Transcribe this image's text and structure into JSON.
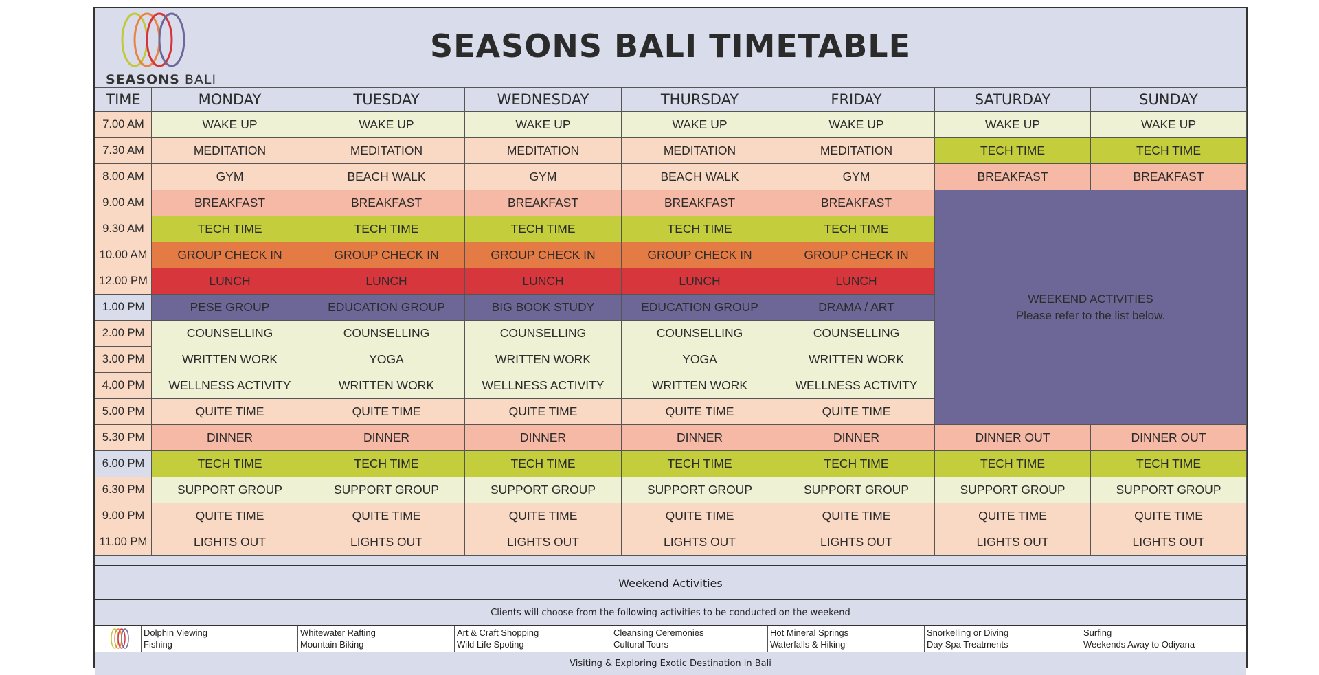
{
  "header": {
    "title": "SEASONS BALI TIMETABLE",
    "logo_text_bold": "SEASONS",
    "logo_text_light": "BALI",
    "logo_colors": [
      "#c3c83a",
      "#e9843f",
      "#d6343b",
      "#6e679a"
    ]
  },
  "table": {
    "time_header": "TIME",
    "days": [
      "MONDAY",
      "TUESDAY",
      "WEDNESDAY",
      "THURSDAY",
      "FRIDAY",
      "SATURDAY",
      "SUNDAY"
    ],
    "times": [
      "7.00 AM",
      "7.30 AM",
      "8.00 AM",
      "9.00 AM",
      "9.30 AM",
      "10.00 AM",
      "12.00 PM",
      "1.00 PM",
      "2.00 PM",
      "3.00 PM",
      "4.00 PM",
      "5.00 PM",
      "5.30 PM",
      "6.00 PM",
      "6.30 PM",
      "9.00 PM",
      "11.00 PM"
    ],
    "rows": [
      [
        "WAKE UP",
        "WAKE UP",
        "WAKE UP",
        "WAKE UP",
        "WAKE UP",
        "WAKE UP",
        "WAKE UP"
      ],
      [
        "MEDITATION",
        "MEDITATION",
        "MEDITATION",
        "MEDITATION",
        "MEDITATION",
        "TECH TIME",
        "TECH TIME"
      ],
      [
        "GYM",
        "BEACH WALK",
        "GYM",
        "BEACH WALK",
        "GYM",
        "BREAKFAST",
        "BREAKFAST"
      ],
      [
        "BREAKFAST",
        "BREAKFAST",
        "BREAKFAST",
        "BREAKFAST",
        "BREAKFAST"
      ],
      [
        "TECH TIME",
        "TECH TIME",
        "TECH TIME",
        "TECH TIME",
        "TECH TIME"
      ],
      [
        "GROUP CHECK IN",
        "GROUP CHECK IN",
        "GROUP CHECK IN",
        "GROUP CHECK IN",
        "GROUP CHECK IN"
      ],
      [
        "LUNCH",
        "LUNCH",
        "LUNCH",
        "LUNCH",
        "LUNCH"
      ],
      [
        "PESE GROUP",
        "EDUCATION GROUP",
        "BIG BOOK STUDY",
        "EDUCATION GROUP",
        "DRAMA / ART"
      ],
      [
        "COUNSELLING",
        "COUNSELLING",
        "COUNSELLING",
        "COUNSELLING",
        "COUNSELLING"
      ],
      [
        "WRITTEN WORK",
        "YOGA",
        "WRITTEN WORK",
        "YOGA",
        "WRITTEN WORK"
      ],
      [
        "WELLNESS ACTIVITY",
        "WRITTEN WORK",
        "WELLNESS ACTIVITY",
        "WRITTEN WORK",
        "WELLNESS ACTIVITY"
      ],
      [
        "QUITE TIME",
        "QUITE TIME",
        "QUITE TIME",
        "QUITE TIME",
        "QUITE TIME"
      ],
      [
        "DINNER",
        "DINNER",
        "DINNER",
        "DINNER",
        "DINNER",
        "DINNER OUT",
        "DINNER OUT"
      ],
      [
        "TECH TIME",
        "TECH TIME",
        "TECH TIME",
        "TECH TIME",
        "TECH TIME",
        "TECH TIME",
        "TECH TIME"
      ],
      [
        "SUPPORT GROUP",
        "SUPPORT GROUP",
        "SUPPORT GROUP",
        "SUPPORT GROUP",
        "SUPPORT GROUP",
        "SUPPORT GROUP",
        "SUPPORT GROUP"
      ],
      [
        "QUITE TIME",
        "QUITE TIME",
        "QUITE TIME",
        "QUITE TIME",
        "QUITE TIME",
        "QUITE TIME",
        "QUITE TIME"
      ],
      [
        "LIGHTS OUT",
        "LIGHTS OUT",
        "LIGHTS OUT",
        "LIGHTS OUT",
        "LIGHTS OUT",
        "LIGHTS OUT",
        "LIGHTS OUT"
      ]
    ],
    "weekend_block": {
      "line1": "WEEKEND ACTIVITIES",
      "line2": "Please refer to the list below."
    }
  },
  "bottom": {
    "heading": "Weekend Activities",
    "subheading": "Clients will choose from the following activities to be conducted on the weekend",
    "activities": [
      [
        "Dolphin Viewing",
        "Fishing"
      ],
      [
        "Whitewater Rafting",
        "Mountain Biking"
      ],
      [
        "Art & Craft Shopping",
        "Wild Life Spoting"
      ],
      [
        "Cleansing Ceremonies",
        "Cultural Tours"
      ],
      [
        "Hot Mineral Springs",
        "Waterfalls & Hiking"
      ],
      [
        "Snorkelling or Diving",
        "Day Spa Treatments"
      ],
      [
        "Surfing",
        "Weekends Away to Odiyana"
      ]
    ],
    "footer": "Visiting & Exploring Exotic Destination in Bali"
  }
}
